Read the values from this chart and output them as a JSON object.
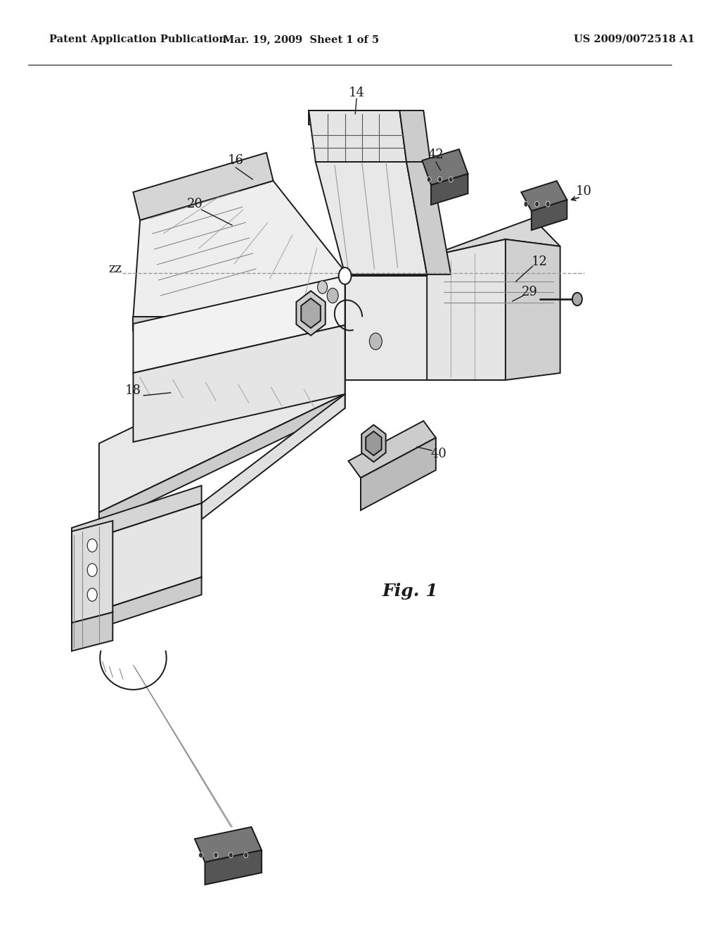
{
  "title": "",
  "background_color": "#ffffff",
  "header_left": "Patent Application Publication",
  "header_center": "Mar. 19, 2009  Sheet 1 of 5",
  "header_right": "US 2009/0072518 A1",
  "fig_label": "Fig. 1",
  "line_color": "#1a1a1a",
  "dashed_line_color": "#777777",
  "text_color": "#1a1a1a",
  "header_fontsize": 10.5,
  "label_fontsize": 13,
  "fig_label_fontsize": 18
}
